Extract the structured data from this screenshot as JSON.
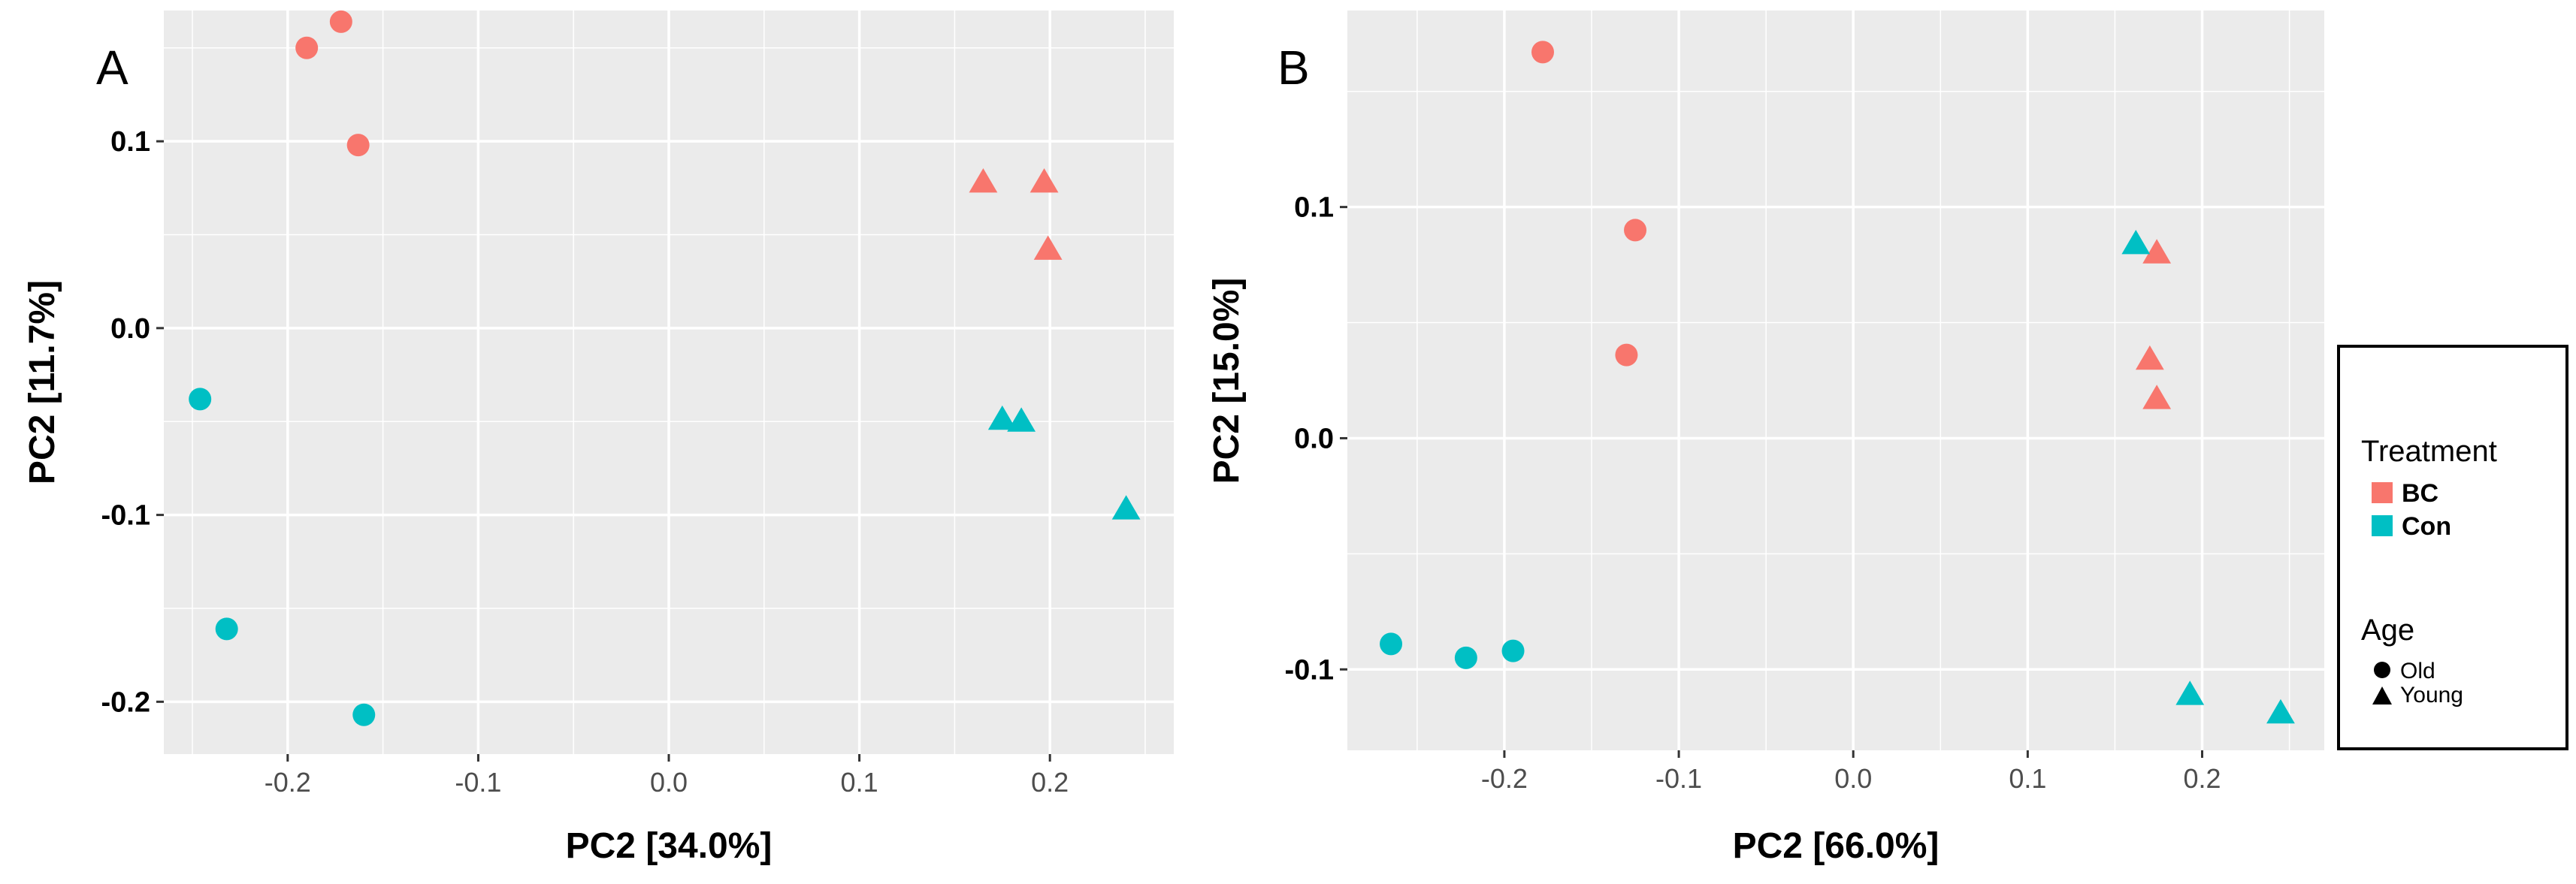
{
  "colors": {
    "BC": "#F8766D",
    "Con": "#00BFC4",
    "panel_bg": "#EBEBEB",
    "grid": "#FFFFFF",
    "text": "#000000",
    "tick_text": "#4D4D4D"
  },
  "legend": {
    "treatment_title": "Treatment",
    "treatment_items": [
      {
        "label": "BC",
        "color_key": "BC"
      },
      {
        "label": "Con",
        "color_key": "Con"
      }
    ],
    "age_title": "Age",
    "age_items": [
      {
        "label": "Old",
        "shape": "circle"
      },
      {
        "label": "Young",
        "shape": "triangle"
      }
    ]
  },
  "chart_data": [
    {
      "panel_label": "A",
      "type": "scatter",
      "xlabel": "PC2 [34.0%]",
      "ylabel": "PC2 [11.7%]",
      "xlim": [
        -0.265,
        0.265
      ],
      "ylim": [
        -0.228,
        0.17
      ],
      "xticks": [
        -0.2,
        -0.1,
        0.0,
        0.1,
        0.2
      ],
      "xtick_labels": [
        "-0.2",
        "-0.1",
        "0.0",
        "0.1",
        "0.2"
      ],
      "yticks": [
        -0.2,
        -0.1,
        0.0,
        0.1
      ],
      "ytick_labels": [
        "-0.2",
        "-0.1",
        "0.0",
        "0.1"
      ],
      "grid": true,
      "points": [
        {
          "x": -0.172,
          "y": 0.164,
          "treatment": "BC",
          "age": "Old"
        },
        {
          "x": -0.19,
          "y": 0.15,
          "treatment": "BC",
          "age": "Old"
        },
        {
          "x": -0.163,
          "y": 0.098,
          "treatment": "BC",
          "age": "Old"
        },
        {
          "x": 0.165,
          "y": 0.078,
          "treatment": "BC",
          "age": "Young"
        },
        {
          "x": 0.197,
          "y": 0.078,
          "treatment": "BC",
          "age": "Young"
        },
        {
          "x": 0.199,
          "y": 0.042,
          "treatment": "BC",
          "age": "Young"
        },
        {
          "x": -0.246,
          "y": -0.038,
          "treatment": "Con",
          "age": "Old"
        },
        {
          "x": -0.232,
          "y": -0.161,
          "treatment": "Con",
          "age": "Old"
        },
        {
          "x": -0.16,
          "y": -0.207,
          "treatment": "Con",
          "age": "Old"
        },
        {
          "x": 0.175,
          "y": -0.049,
          "treatment": "Con",
          "age": "Young"
        },
        {
          "x": 0.185,
          "y": -0.05,
          "treatment": "Con",
          "age": "Young"
        },
        {
          "x": 0.24,
          "y": -0.097,
          "treatment": "Con",
          "age": "Young"
        }
      ]
    },
    {
      "panel_label": "B",
      "type": "scatter",
      "xlabel": "PC2 [66.0%]",
      "ylabel": "PC2 [15.0%]",
      "xlim": [
        -0.29,
        0.27
      ],
      "ylim": [
        -0.135,
        0.185
      ],
      "xticks": [
        -0.2,
        -0.1,
        0.0,
        0.1,
        0.2
      ],
      "xtick_labels": [
        "-0.2",
        "-0.1",
        "0.0",
        "0.1",
        "0.2"
      ],
      "yticks": [
        -0.1,
        0.0,
        0.1
      ],
      "ytick_labels": [
        "-0.1",
        "0.0",
        "0.1"
      ],
      "grid": true,
      "points": [
        {
          "x": -0.178,
          "y": 0.167,
          "treatment": "BC",
          "age": "Old"
        },
        {
          "x": -0.125,
          "y": 0.09,
          "treatment": "BC",
          "age": "Old"
        },
        {
          "x": -0.13,
          "y": 0.036,
          "treatment": "BC",
          "age": "Old"
        },
        {
          "x": 0.174,
          "y": 0.08,
          "treatment": "BC",
          "age": "Young"
        },
        {
          "x": 0.17,
          "y": 0.034,
          "treatment": "BC",
          "age": "Young"
        },
        {
          "x": 0.174,
          "y": 0.017,
          "treatment": "BC",
          "age": "Young"
        },
        {
          "x": -0.265,
          "y": -0.089,
          "treatment": "Con",
          "age": "Old"
        },
        {
          "x": -0.222,
          "y": -0.095,
          "treatment": "Con",
          "age": "Old"
        },
        {
          "x": -0.195,
          "y": -0.092,
          "treatment": "Con",
          "age": "Old"
        },
        {
          "x": 0.162,
          "y": 0.084,
          "treatment": "Con",
          "age": "Young"
        },
        {
          "x": 0.193,
          "y": -0.111,
          "treatment": "Con",
          "age": "Young"
        },
        {
          "x": 0.245,
          "y": -0.119,
          "treatment": "Con",
          "age": "Young"
        }
      ]
    }
  ]
}
